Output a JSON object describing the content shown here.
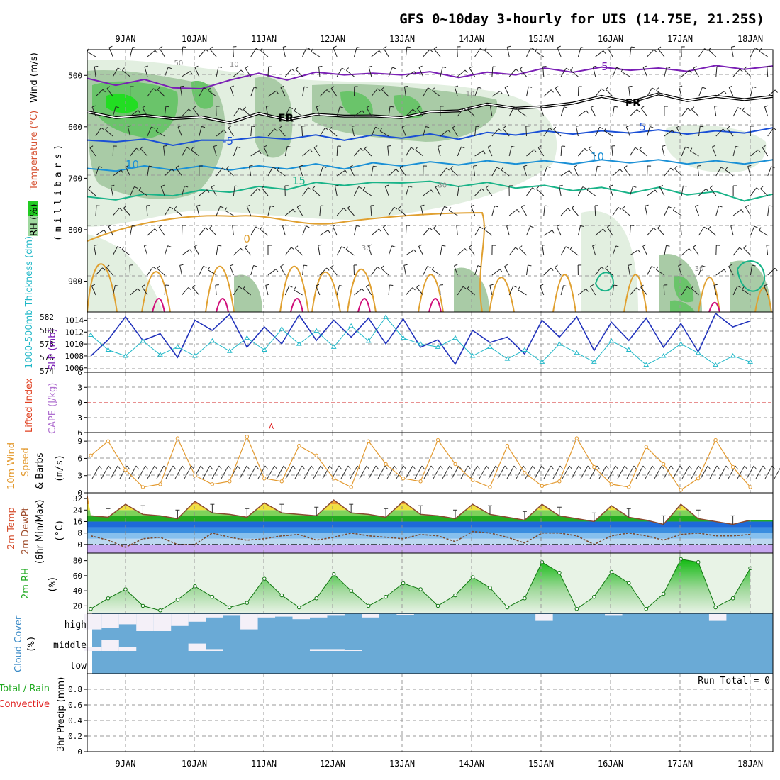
{
  "title": "GFS 0~10day 3-hourly for UIS (14.75E, 21.25S)",
  "date_labels": [
    "9JAN",
    "10JAN",
    "11JAN",
    "12JAN",
    "13JAN",
    "14JAN",
    "15JAN",
    "16JAN",
    "17JAN",
    "18JAN"
  ],
  "colors": {
    "purple": "#7a1fb5",
    "black": "#000000",
    "blue": "#1a4fd6",
    "lightblue": "#1a90d6",
    "teal": "#19b388",
    "orange": "#e0a030",
    "magenta": "#d0107a",
    "cyan": "#22b8c8",
    "navy": "#2233bb",
    "wind": "#e39a30",
    "rh": "#22cc22",
    "cloud_bg": "#6aaad6",
    "cloud_white": "#f4f0f8"
  },
  "chart_data": [
    {
      "panel": "upper-air",
      "type": "heatmap",
      "ylabel_parts": [
        "RH (%)",
        "Temperature (°C)",
        "Wind (m/s)"
      ],
      "ylabel_units": "(millibars)",
      "y_ticks": [
        500,
        600,
        700,
        800,
        900
      ],
      "ylim": [
        450,
        960
      ],
      "contour_labels": [
        {
          "text": "-5",
          "day": 6.8,
          "p": 490
        },
        {
          "text": "FR",
          "day": 2.2,
          "p": 590
        },
        {
          "text": "FR",
          "day": 7.2,
          "p": 560
        },
        {
          "text": "-5",
          "day": 1.4,
          "p": 635
        },
        {
          "text": "5",
          "day": 7.4,
          "p": 607
        },
        {
          "text": "10",
          "day": 0.0,
          "p": 680
        },
        {
          "text": "10",
          "day": 6.7,
          "p": 665
        },
        {
          "text": "15",
          "day": 2.4,
          "p": 712
        },
        {
          "text": "0",
          "day": 1.7,
          "p": 825
        },
        {
          "text": "50",
          "day": 0.7,
          "p": 480
        },
        {
          "text": "10",
          "day": 1.5,
          "p": 483
        },
        {
          "text": "10",
          "day": 4.9,
          "p": 540
        },
        {
          "text": "30",
          "day": 4.5,
          "p": 718
        },
        {
          "text": "30",
          "day": 3.4,
          "p": 840
        },
        {
          "text": "30",
          "day": 8.2,
          "p": 880
        }
      ],
      "isotherms": [
        {
          "label": "-5 (top)",
          "color": "purple",
          "p": [
            510,
            515,
            512,
            520,
            530,
            505,
            500,
            505,
            498,
            495,
            500,
            495,
            497,
            500,
            498,
            495,
            490,
            490,
            488,
            486,
            490,
            488,
            485,
            484,
            486
          ]
        },
        {
          "label": "FR",
          "color": "black",
          "p": [
            575,
            578,
            582,
            580,
            585,
            588,
            578,
            582,
            580,
            575,
            583,
            578,
            575,
            565,
            560,
            560,
            565,
            550,
            545,
            548,
            540,
            545,
            545,
            543,
            545
          ]
        },
        {
          "label": "5",
          "color": "blue",
          "p": [
            630,
            625,
            628,
            632,
            630,
            622,
            624,
            620,
            620,
            622,
            620,
            618,
            618,
            620,
            615,
            612,
            612,
            610,
            612,
            608,
            610,
            610,
            612,
            608,
            606
          ]
        },
        {
          "label": "10",
          "color": "lightblue",
          "p": [
            685,
            682,
            680,
            680,
            680,
            680,
            680,
            678,
            676,
            678,
            674,
            672,
            672,
            670,
            670,
            668,
            670,
            668,
            668,
            666,
            668,
            668,
            670,
            668,
            668
          ]
        },
        {
          "label": "15",
          "color": "teal",
          "p": [
            740,
            738,
            735,
            730,
            727,
            723,
            720,
            718,
            712,
            710,
            712,
            705,
            710,
            712,
            712,
            715,
            718,
            720,
            722,
            725,
            722,
            728,
            730,
            740,
            735
          ]
        }
      ]
    },
    {
      "panel": "thickness-slp",
      "type": "line",
      "ylabel_left": "1000-500mb Thickness (dm)",
      "ylabel_right": "SLP (mb)",
      "left_ticks": [
        574,
        576,
        578,
        580,
        582
      ],
      "right_ticks": [
        1006,
        1008,
        1010,
        1012,
        1014
      ],
      "series": [
        {
          "name": "1000-500mb Thickness (dm)",
          "color": "navy",
          "ylim": [
            574,
            582.4
          ],
          "x": [
            0,
            0.25,
            0.5,
            0.75,
            1,
            1.25,
            1.5,
            1.75,
            2,
            2.25,
            2.5,
            2.75,
            3,
            3.25,
            3.5,
            3.75,
            4,
            4.25,
            4.5,
            4.75,
            5,
            5.25,
            5.5,
            5.75,
            6,
            6.25,
            6.5,
            6.75,
            7,
            7.25,
            7.5,
            7.75,
            8,
            8.25,
            8.5,
            8.75,
            9,
            9.25,
            9.5
          ],
          "values": [
            576.2,
            578.6,
            582.0,
            578.5,
            579.5,
            576.0,
            581.5,
            580.0,
            582.4,
            577.5,
            580.5,
            578.0,
            582.3,
            578.5,
            581.5,
            579.0,
            581.8,
            578.0,
            581.7,
            577.5,
            578.6,
            575.0,
            580.0,
            578.2,
            579.0,
            576.5,
            581.5,
            579.0,
            582.0,
            577.0,
            581.2,
            578.5,
            581.8,
            577.5,
            581.0,
            576.8,
            582.5,
            580.5,
            581.4
          ]
        },
        {
          "name": "SLP (mb)",
          "color": "cyan",
          "ylim": [
            1005.5,
            1015
          ],
          "x": [
            0,
            0.25,
            0.5,
            0.75,
            1,
            1.25,
            1.5,
            1.75,
            2,
            2.25,
            2.5,
            2.75,
            3,
            3.25,
            3.5,
            3.75,
            4,
            4.25,
            4.5,
            4.75,
            5,
            5.25,
            5.5,
            5.75,
            6,
            6.25,
            6.5,
            6.75,
            7,
            7.25,
            7.5,
            7.75,
            8,
            8.25,
            8.5,
            8.75,
            9,
            9.25,
            9.5
          ],
          "values": [
            1011.5,
            1009.0,
            1008.0,
            1010.5,
            1008.2,
            1009.5,
            1008.0,
            1010.5,
            1008.8,
            1011.0,
            1009.0,
            1012.5,
            1010.0,
            1012.2,
            1009.5,
            1013.0,
            1010.5,
            1014.5,
            1011.0,
            1010.0,
            1009.5,
            1011.0,
            1008.0,
            1009.5,
            1007.5,
            1009.0,
            1007.0,
            1010.0,
            1008.5,
            1007.0,
            1010.5,
            1009.0,
            1006.5,
            1008.0,
            1010.0,
            1008.5,
            1006.5,
            1008.0,
            1007.0
          ]
        }
      ]
    },
    {
      "panel": "cape-li",
      "type": "line",
      "ylabel_left": "Lifted Index",
      "ylabel_right": "CAPE (J/kg)",
      "y_ticks": [
        -6,
        -3,
        0,
        3,
        6
      ],
      "tick_labels": [
        "6",
        "3",
        "0",
        "3",
        "6"
      ],
      "marker": {
        "day": 2.6,
        "value": 4.7
      }
    },
    {
      "panel": "wind10m",
      "type": "line",
      "ylabel": "10m Wind Speed & Barbs",
      "ylabel_units": "(m/s)",
      "y_ticks": [
        0,
        3,
        6,
        9
      ],
      "ylim": [
        0,
        10.5
      ],
      "series": [
        {
          "name": "10m Wind Speed",
          "color": "wind",
          "x": [
            0,
            0.25,
            0.5,
            0.75,
            1,
            1.25,
            1.5,
            1.75,
            2,
            2.25,
            2.5,
            2.75,
            3,
            3.25,
            3.5,
            3.75,
            4,
            4.25,
            4.5,
            4.75,
            5,
            5.25,
            5.5,
            5.75,
            6,
            6.25,
            6.5,
            6.75,
            7,
            7.25,
            7.5,
            7.75,
            8,
            8.25,
            8.5,
            8.75,
            9,
            9.25,
            9.5
          ],
          "values": [
            6.5,
            9.0,
            4.0,
            1.0,
            1.5,
            9.5,
            3.0,
            1.5,
            2.0,
            9.8,
            2.5,
            2.0,
            8.2,
            6.5,
            2.5,
            1.0,
            9.0,
            5.0,
            2.5,
            2.0,
            9.2,
            5.0,
            2.2,
            1.0,
            8.2,
            3.5,
            1.2,
            2.0,
            9.5,
            4.5,
            1.5,
            1.0,
            8.0,
            5.0,
            0.5,
            2.5,
            9.2,
            4.5,
            1.0
          ]
        }
      ]
    },
    {
      "panel": "temp2m",
      "type": "area",
      "ylabel": "2m Temp 2m DewPt (6hr Min/Max)",
      "ylabel_units": "(°C)",
      "y_ticks": [
        0,
        8,
        16,
        24,
        32
      ],
      "ylim": [
        -6,
        36
      ],
      "series": [
        {
          "name": "2m Temp",
          "x": [
            0,
            0.25,
            0.5,
            0.75,
            1,
            1.25,
            1.5,
            1.75,
            2,
            2.25,
            2.5,
            2.75,
            3,
            3.25,
            3.5,
            3.75,
            4,
            4.25,
            4.5,
            4.75,
            5,
            5.25,
            5.5,
            5.75,
            6,
            6.25,
            6.5,
            6.75,
            7,
            7.25,
            7.5,
            7.75,
            8,
            8.25,
            8.5,
            8.75,
            9,
            9.25,
            9.5
          ],
          "values": [
            20,
            19,
            28,
            21,
            20,
            18,
            30,
            22,
            21,
            19,
            29,
            22,
            21,
            20,
            31,
            22,
            21,
            19,
            30,
            21,
            20,
            18,
            28,
            21,
            19,
            17,
            28,
            20,
            18,
            16,
            27,
            19,
            17,
            14,
            28,
            18,
            16,
            14,
            17
          ]
        },
        {
          "name": "2m DewPt",
          "x": [
            0,
            0.25,
            0.5,
            0.75,
            1,
            1.25,
            1.5,
            1.75,
            2,
            2.25,
            2.5,
            2.75,
            3,
            3.25,
            3.5,
            3.75,
            4,
            4.25,
            4.5,
            4.75,
            5,
            5.25,
            5.5,
            5.75,
            6,
            6.25,
            6.5,
            6.75,
            7,
            7.25,
            7.5,
            7.75,
            8,
            8.25,
            8.5,
            8.75,
            9,
            9.25,
            9.5
          ],
          "values": [
            6,
            3,
            -2,
            4,
            5,
            0,
            0,
            8,
            5,
            3,
            4,
            6,
            7,
            3,
            5,
            8,
            6,
            5,
            4,
            7,
            6,
            2,
            9,
            8,
            5,
            1,
            8,
            8,
            6,
            0,
            6,
            8,
            6,
            3,
            7,
            8,
            6,
            6,
            7
          ]
        }
      ]
    },
    {
      "panel": "rh2m",
      "type": "area",
      "ylabel": "2m RH",
      "ylabel_units": "(%)",
      "y_ticks": [
        20,
        40,
        60,
        80
      ],
      "ylim": [
        10,
        90
      ],
      "series": [
        {
          "name": "2m RH",
          "color": "rh",
          "x": [
            0,
            0.25,
            0.5,
            0.75,
            1,
            1.25,
            1.5,
            1.75,
            2,
            2.25,
            2.5,
            2.75,
            3,
            3.25,
            3.5,
            3.75,
            4,
            4.25,
            4.5,
            4.75,
            5,
            5.25,
            5.5,
            5.75,
            6,
            6.25,
            6.5,
            6.75,
            7,
            7.25,
            7.5,
            7.75,
            8,
            8.25,
            8.5,
            8.75,
            9,
            9.25,
            9.5
          ],
          "values": [
            16,
            30,
            42,
            20,
            14,
            28,
            46,
            32,
            18,
            24,
            56,
            34,
            18,
            30,
            62,
            40,
            20,
            32,
            50,
            42,
            20,
            34,
            58,
            44,
            18,
            30,
            78,
            64,
            16,
            32,
            65,
            50,
            16,
            36,
            82,
            78,
            18,
            30,
            70
          ]
        }
      ]
    },
    {
      "panel": "cloud",
      "type": "bar",
      "ylabel": "Cloud Cover",
      "ylabel_units": "(%)",
      "levels": [
        "high",
        "middle",
        "low"
      ],
      "high_x": [
        0,
        0.25,
        0.5,
        0.75,
        1,
        1.25,
        1.5,
        1.75,
        2,
        2.25,
        2.5,
        2.75,
        3,
        3.25,
        3.5,
        3.75,
        4,
        4.25,
        4.5,
        4.75,
        5,
        5.25,
        5.5,
        5.75,
        6,
        6.25,
        6.5,
        6.75,
        7,
        7.25,
        7.5,
        7.75,
        8,
        8.25,
        8.5,
        8.75,
        9,
        9.25,
        9.5
      ],
      "high_values": [
        90,
        80,
        60,
        100,
        100,
        70,
        45,
        20,
        10,
        90,
        20,
        15,
        30,
        20,
        10,
        0,
        20,
        0,
        5,
        0,
        0,
        0,
        0,
        0,
        0,
        0,
        40,
        0,
        0,
        0,
        10,
        0,
        0,
        0,
        0,
        0,
        40,
        0,
        0
      ],
      "middle_x": [
        0,
        0.25,
        0.5,
        0.75,
        1,
        1.25,
        1.5,
        1.75,
        2,
        2.25,
        2.5,
        2.75,
        3,
        3.25,
        3.5,
        3.75,
        4,
        4.25,
        4.5,
        4.75,
        5,
        5.25,
        5.5,
        5.75,
        6,
        6.25,
        6.5,
        6.75,
        7,
        7.25,
        7.5,
        7.75,
        8,
        8.25,
        8.5,
        8.75,
        9,
        9.25,
        9.5
      ],
      "middle_values": [
        20,
        60,
        20,
        0,
        0,
        0,
        40,
        10,
        0,
        0,
        0,
        0,
        0,
        10,
        10,
        5,
        0,
        0,
        0,
        0,
        0,
        0,
        0,
        0,
        0,
        0,
        0,
        0,
        0,
        0,
        0,
        0,
        0,
        0,
        0,
        0,
        0,
        0,
        0
      ],
      "low_values": [
        0,
        0,
        0,
        0,
        0,
        0,
        0,
        0,
        0,
        0,
        0,
        0,
        0,
        0,
        0,
        0,
        0,
        0,
        0,
        0,
        0,
        0,
        0,
        0,
        0,
        0,
        0,
        0,
        0,
        0,
        0,
        0,
        0,
        0,
        0,
        0,
        0,
        0,
        0
      ]
    },
    {
      "panel": "precip",
      "type": "bar",
      "ylabel_parts": [
        "Total / Rain",
        "Convective"
      ],
      "ylabel": "3hr Precip (mm)",
      "y_ticks": [
        0,
        0.2,
        0.4,
        0.6,
        0.8
      ],
      "ylim": [
        0,
        1
      ],
      "annotation": "Run Total = 0",
      "values": []
    }
  ]
}
